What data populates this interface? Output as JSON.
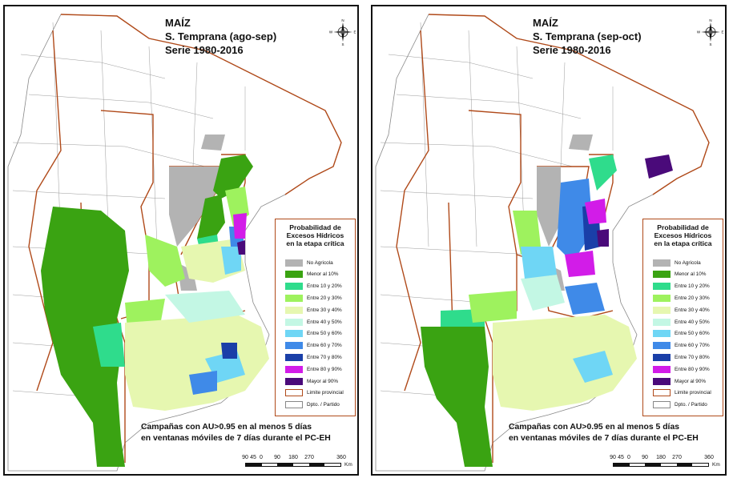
{
  "panels": [
    {
      "id": "left",
      "title_1": "MAÍZ",
      "title_2": "S. Temprana (ago-sep)",
      "title_3": "Serie 1980-2016",
      "caption_1": "Campañas con AU>0.95 en al menos 5 días",
      "caption_2": "en ventanas móviles de 7 días durante el PC-EH"
    },
    {
      "id": "right",
      "title_1": "MAÍZ",
      "title_2": "S. Temprana (sep-oct)",
      "title_3": "Serie 1980-2016",
      "caption_1": "Campañas con AU>0.95 en al menos 5 días",
      "caption_2": "en ventanas móviles de 7 días durante el PC-EH"
    }
  ],
  "legend": {
    "title_1": "Probabilidad de",
    "title_2": "Excesos Hídricos",
    "title_3": "en la etapa crítica",
    "items": [
      {
        "label": "No Agricola",
        "color": "#b3b3b3"
      },
      {
        "label": "Menor al 10%",
        "color": "#3aa312"
      },
      {
        "label": "Entre 10 y 20%",
        "color": "#2fdc8c"
      },
      {
        "label": "Entre 20 y 30%",
        "color": "#9ef25e"
      },
      {
        "label": "Entre 30 y 40%",
        "color": "#e6f7b0"
      },
      {
        "label": "Entre 40 y 50%",
        "color": "#c3f7e4"
      },
      {
        "label": "Entre 50 y 60%",
        "color": "#6fd6f5"
      },
      {
        "label": "Entre 60 y 70%",
        "color": "#3f8ae8"
      },
      {
        "label": "Entre 70 y 80%",
        "color": "#1a3fa8"
      },
      {
        "label": "Entre 80 y 90%",
        "color": "#d21ce8"
      },
      {
        "label": "Mayor al 90%",
        "color": "#4a0a7a"
      },
      {
        "label": "Limite provincial",
        "color": "#b04a1a"
      },
      {
        "label": "Dpto. / Partido",
        "color": "#888888"
      }
    ]
  },
  "compass": {
    "n": "N",
    "s": "S",
    "e": "E",
    "w": "W"
  },
  "scale": {
    "ticks": [
      "90",
      "45",
      "0",
      "90",
      "180",
      "270",
      "360"
    ],
    "unit": "Km"
  }
}
